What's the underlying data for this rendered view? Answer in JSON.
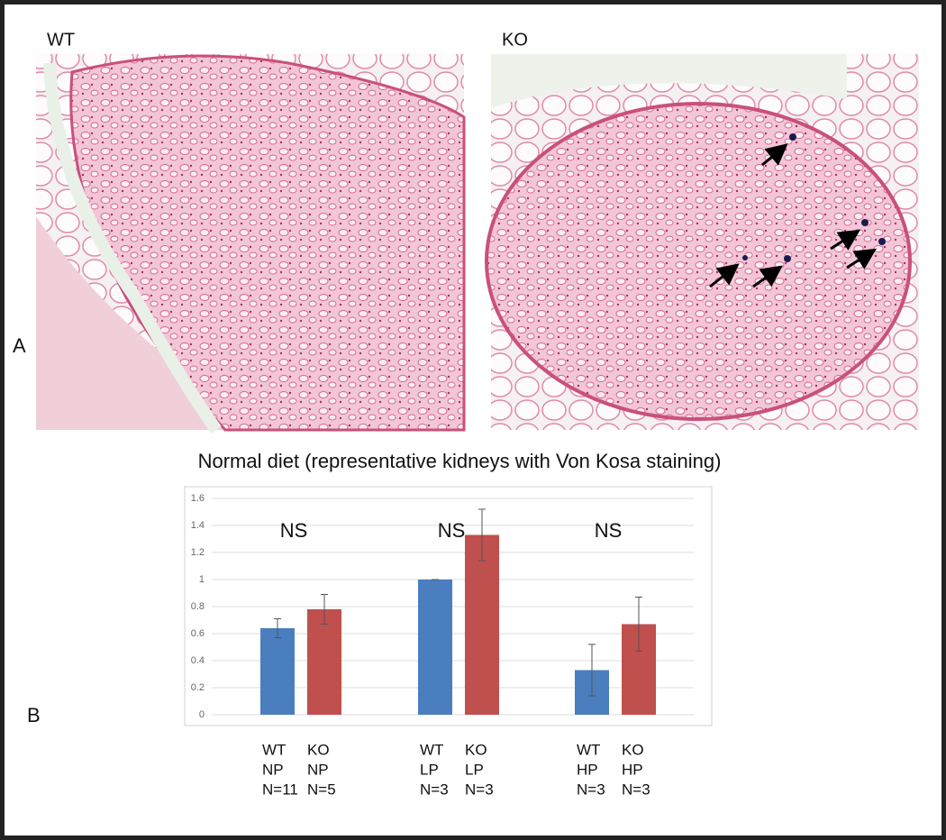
{
  "panel_a": {
    "label": "A",
    "left_title": "WT",
    "right_title": "KO",
    "caption": "Normal diet (representative kidneys with Von Kosa staining)"
  },
  "panel_b": {
    "label": "B"
  },
  "chart_data": {
    "type": "bar",
    "annotations": [
      "NS",
      "NS",
      "NS"
    ],
    "bar_labels": [
      [
        [
          "WT",
          "NP",
          "N=11"
        ],
        [
          "KO",
          "NP",
          "N=5"
        ]
      ],
      [
        [
          "WT",
          "LP",
          "N=3"
        ],
        [
          "KO",
          "LP",
          "N=3"
        ]
      ],
      [
        [
          "WT",
          "HP",
          "N=3"
        ],
        [
          "KO",
          "HP",
          "N=3"
        ]
      ]
    ],
    "series": [
      {
        "color": "#4a7ebf",
        "values": [
          0.64,
          1.0,
          0.33
        ],
        "errors": [
          0.07,
          0,
          0.19
        ]
      },
      {
        "color": "#c0504d",
        "values": [
          0.78,
          1.33,
          0.67
        ],
        "errors": [
          0.11,
          0.19,
          0.2
        ]
      }
    ],
    "ylim": [
      0,
      1.6
    ],
    "yticks": [
      0,
      0.2,
      0.4,
      0.6,
      0.8,
      1,
      1.2,
      1.4,
      1.6
    ],
    "grid": true
  }
}
